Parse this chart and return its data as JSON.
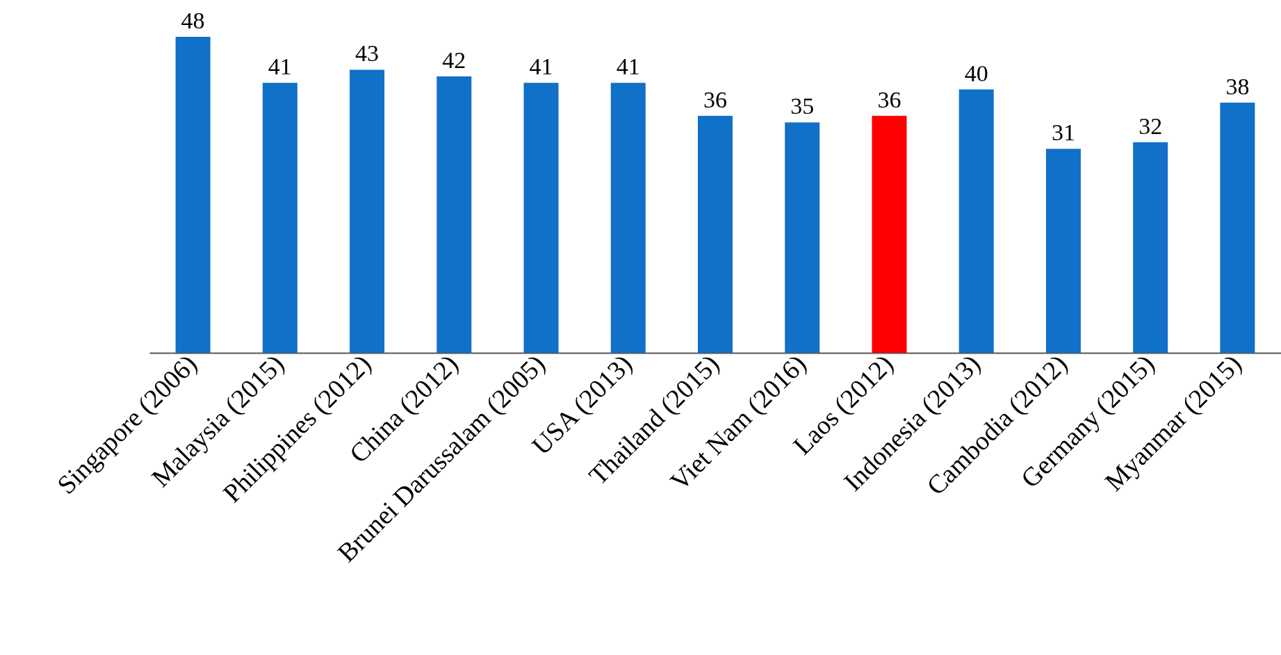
{
  "chart_data": {
    "type": "bar",
    "categories": [
      "Singapore (2006)",
      "Malaysia (2015)",
      "Philippines (2012)",
      "China (2012)",
      "Brunei Darussalam (2005)",
      "USA (2013)",
      "Thailand (2015)",
      "Viet Nam (2016)",
      "Laos (2012)",
      "Indonesia (2013)",
      "Cambodia (2012)",
      "Germany (2015)",
      "Myanmar (2015)"
    ],
    "values": [
      48,
      41,
      43,
      42,
      41,
      41,
      36,
      35,
      36,
      40,
      31,
      32,
      38
    ],
    "colors": [
      "#1170c8",
      "#1170c8",
      "#1170c8",
      "#1170c8",
      "#1170c8",
      "#1170c8",
      "#1170c8",
      "#1170c8",
      "#ff0000",
      "#1170c8",
      "#1170c8",
      "#1170c8",
      "#1170c8"
    ],
    "data_labels": true
  }
}
